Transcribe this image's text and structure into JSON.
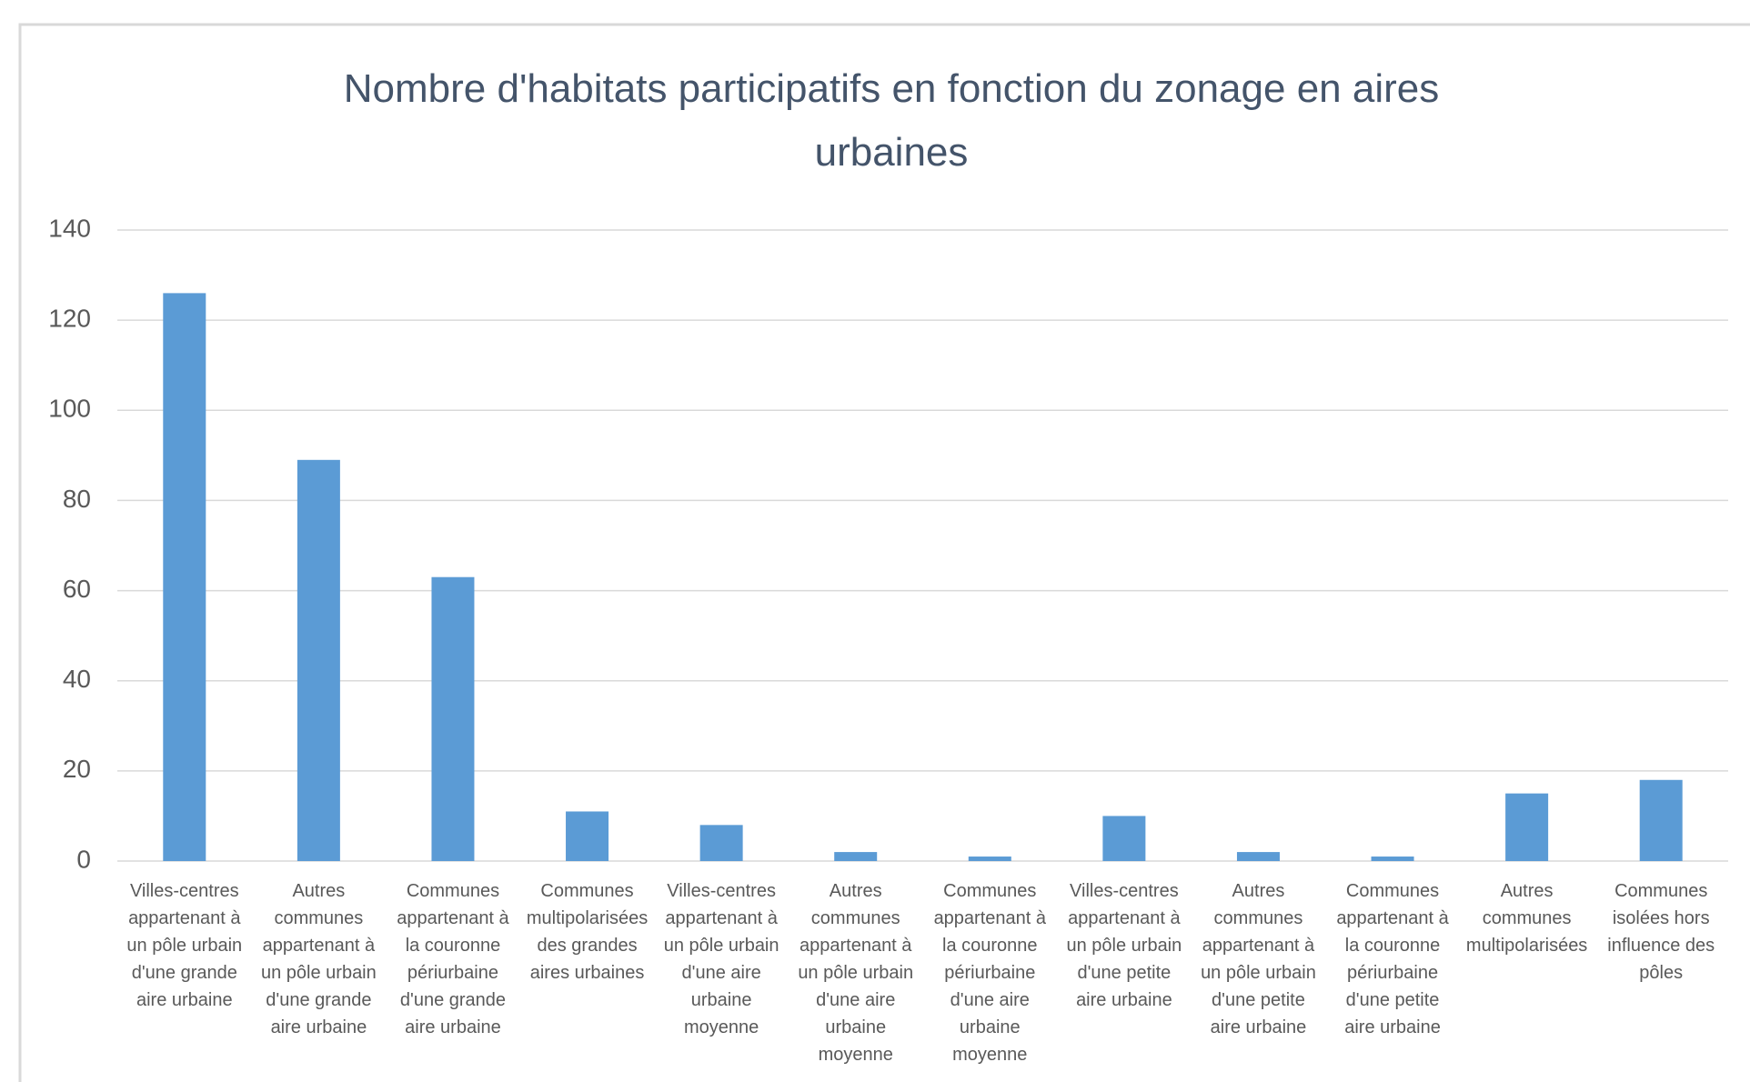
{
  "chart_data": {
    "type": "bar",
    "title": "Nombre d'habitats participatifs en fonction du zonage en aires urbaines",
    "categories": [
      "Villes-centres appartenant à un pôle urbain d'une grande aire urbaine",
      "Autres communes appartenant à un pôle urbain d'une grande aire urbaine",
      "Communes appartenant à la couronne périurbaine d'une grande aire urbaine",
      "Communes multipolarisées des grandes aires urbaines",
      "Villes-centres appartenant à un pôle urbain d'une aire urbaine moyenne",
      "Autres communes appartenant à un pôle urbain d'une aire urbaine moyenne",
      "Communes appartenant à la couronne périurbaine d'une aire urbaine moyenne",
      "Villes-centres appartenant à un pôle urbain d'une petite aire urbaine",
      "Autres communes appartenant à un pôle urbain d'une petite aire urbaine",
      "Communes appartenant à la couronne périurbaine d'une petite aire urbaine",
      "Autres communes multipolarisées",
      "Communes isolées hors influence des pôles"
    ],
    "values": [
      126,
      89,
      63,
      11,
      8,
      2,
      1,
      10,
      2,
      1,
      15,
      18
    ],
    "color": "#5b9bd5",
    "ylim": [
      0,
      140
    ],
    "yticks": [
      0,
      20,
      40,
      60,
      80,
      100,
      120,
      140
    ],
    "grid": true
  }
}
